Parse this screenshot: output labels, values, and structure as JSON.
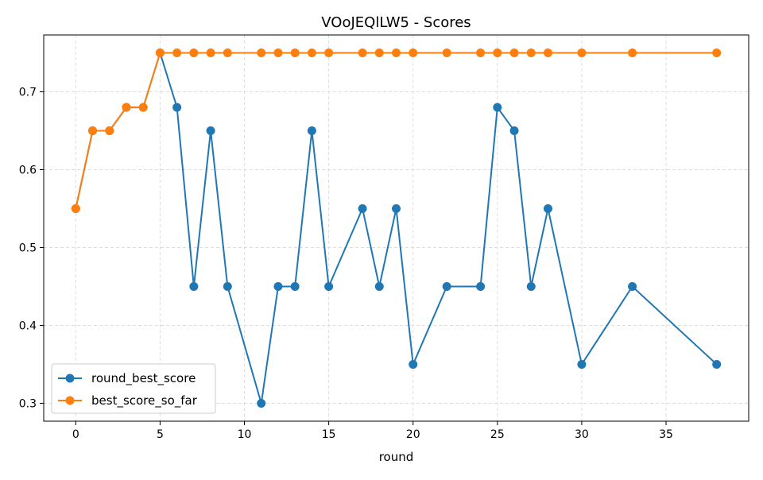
{
  "chart_data": {
    "type": "line",
    "title": "VOoJEQlLW5 - Scores",
    "xlabel": "round",
    "ylabel": "",
    "xlim": [
      -1.9,
      39.9
    ],
    "ylim": [
      0.277,
      0.773
    ],
    "x_ticks": [
      0,
      5,
      10,
      15,
      20,
      25,
      30,
      35
    ],
    "y_ticks": [
      0.3,
      0.4,
      0.5,
      0.6,
      0.7
    ],
    "grid": true,
    "legend_position": "lower-left",
    "x": [
      0,
      1,
      2,
      3,
      4,
      5,
      6,
      7,
      8,
      9,
      11,
      12,
      13,
      14,
      15,
      17,
      18,
      19,
      20,
      22,
      24,
      25,
      26,
      27,
      28,
      30,
      33,
      38
    ],
    "series": [
      {
        "name": "round_best_score",
        "color": "#1f77b4",
        "values": [
          0.55,
          0.65,
          0.65,
          0.68,
          0.68,
          0.75,
          0.68,
          0.45,
          0.65,
          0.45,
          0.3,
          0.45,
          0.45,
          0.65,
          0.45,
          0.55,
          0.45,
          0.55,
          0.35,
          0.45,
          0.45,
          0.68,
          0.65,
          0.45,
          0.55,
          0.35,
          0.45,
          0.35
        ]
      },
      {
        "name": "best_score_so_far",
        "color": "#ff7f0e",
        "values": [
          0.55,
          0.65,
          0.65,
          0.68,
          0.68,
          0.75,
          0.75,
          0.75,
          0.75,
          0.75,
          0.75,
          0.75,
          0.75,
          0.75,
          0.75,
          0.75,
          0.75,
          0.75,
          0.75,
          0.75,
          0.75,
          0.75,
          0.75,
          0.75,
          0.75,
          0.75,
          0.75,
          0.75
        ]
      }
    ]
  }
}
